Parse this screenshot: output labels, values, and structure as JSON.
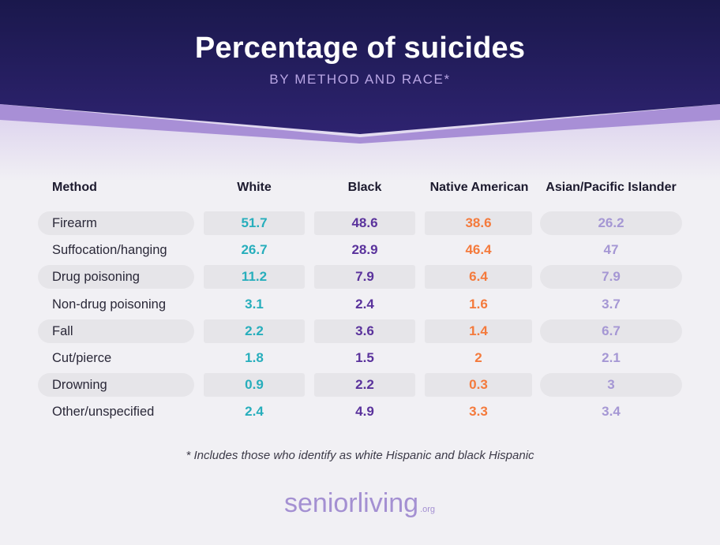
{
  "title": "Percentage of suicides",
  "subtitle": "BY METHOD AND RACE*",
  "columns": [
    "Method",
    "White",
    "Black",
    "Native American",
    "Asian/Pacific Islander"
  ],
  "footnote": "* Includes those who identify as white Hispanic and black Hispanic",
  "logo": {
    "main": "seniorliving",
    "suffix": ".org"
  },
  "colors": {
    "header_bg": "#1f1b57",
    "band": "#a88fd6",
    "white": "#27aebc",
    "black": "#5a329c",
    "native_american": "#f47a3c",
    "asian_pacific_islander": "#a597d4"
  },
  "chart_data": {
    "type": "table",
    "title": "Percentage of suicides",
    "subtitle": "BY METHOD AND RACE*",
    "columns": [
      "Method",
      "White",
      "Black",
      "Native American",
      "Asian/Pacific Islander"
    ],
    "rows": [
      {
        "method": "Firearm",
        "values": [
          "51.7",
          "48.6",
          "38.6",
          "26.2"
        ]
      },
      {
        "method": "Suffocation/hanging",
        "values": [
          "26.7",
          "28.9",
          "46.4",
          "47"
        ]
      },
      {
        "method": "Drug poisoning",
        "values": [
          "11.2",
          "7.9",
          "6.4",
          "7.9"
        ]
      },
      {
        "method": "Non-drug poisoning",
        "values": [
          "3.1",
          "2.4",
          "1.6",
          "3.7"
        ]
      },
      {
        "method": "Fall",
        "values": [
          "2.2",
          "3.6",
          "1.4",
          "6.7"
        ]
      },
      {
        "method": "Cut/pierce",
        "values": [
          "1.8",
          "1.5",
          "2",
          "2.1"
        ]
      },
      {
        "method": "Drowning",
        "values": [
          "0.9",
          "2.2",
          "0.3",
          "3"
        ]
      },
      {
        "method": "Other/unspecified",
        "values": [
          "2.4",
          "4.9",
          "3.3",
          "3.4"
        ]
      }
    ]
  }
}
